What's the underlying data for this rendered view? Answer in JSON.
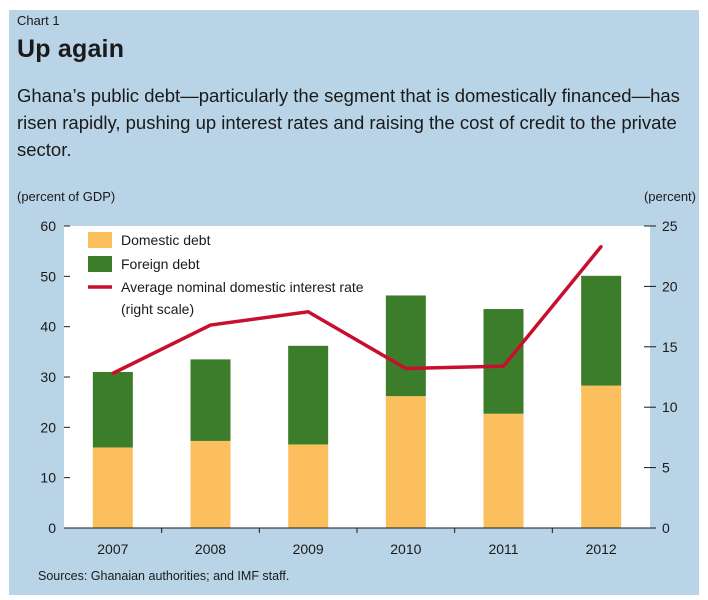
{
  "header": {
    "chart_number": "Chart 1",
    "title": "Up again",
    "subtitle": "Ghana’s public debt—particularly the segment that is domestically financed—has risen rapidly, pushing up interest rates and raising the cost of credit to the private sector."
  },
  "axes": {
    "left_unit": "(percent of GDP)",
    "right_unit": "(percent)"
  },
  "footer": {
    "source": "Sources: Ghanaian authorities; and IMF staff."
  },
  "colors": {
    "panel_background": "#b9d4e6",
    "plot_background": "#ffffff",
    "domestic_debt": "#fbbf5e",
    "foreign_debt": "#3b7d2b",
    "interest_rate_line": "#c8102e"
  },
  "chart_data": {
    "type": "bar",
    "stacked": true,
    "categories": [
      "2007",
      "2008",
      "2009",
      "2010",
      "2011",
      "2012"
    ],
    "series": [
      {
        "name": "Domestic debt",
        "kind": "bar",
        "axis": "left",
        "values": [
          16,
          17.3,
          16.6,
          26.2,
          22.7,
          28.3
        ]
      },
      {
        "name": "Foreign debt",
        "kind": "bar",
        "axis": "left",
        "values": [
          15,
          16.2,
          19.6,
          20,
          20.8,
          21.8
        ]
      },
      {
        "name": "Average nominal domestic interest rate",
        "legend_suffix": "(right scale)",
        "kind": "line",
        "axis": "right",
        "values": [
          12.8,
          16.8,
          17.9,
          13.2,
          13.4,
          23.3
        ]
      }
    ],
    "ylim_left": [
      0,
      60
    ],
    "yticks_left": [
      "0",
      "10",
      "20",
      "30",
      "40",
      "50",
      "60"
    ],
    "ylim_right": [
      0,
      25
    ],
    "yticks_right": [
      "0",
      "5",
      "10",
      "15",
      "20",
      "25"
    ],
    "grid": false,
    "legend_position": "top-left"
  }
}
